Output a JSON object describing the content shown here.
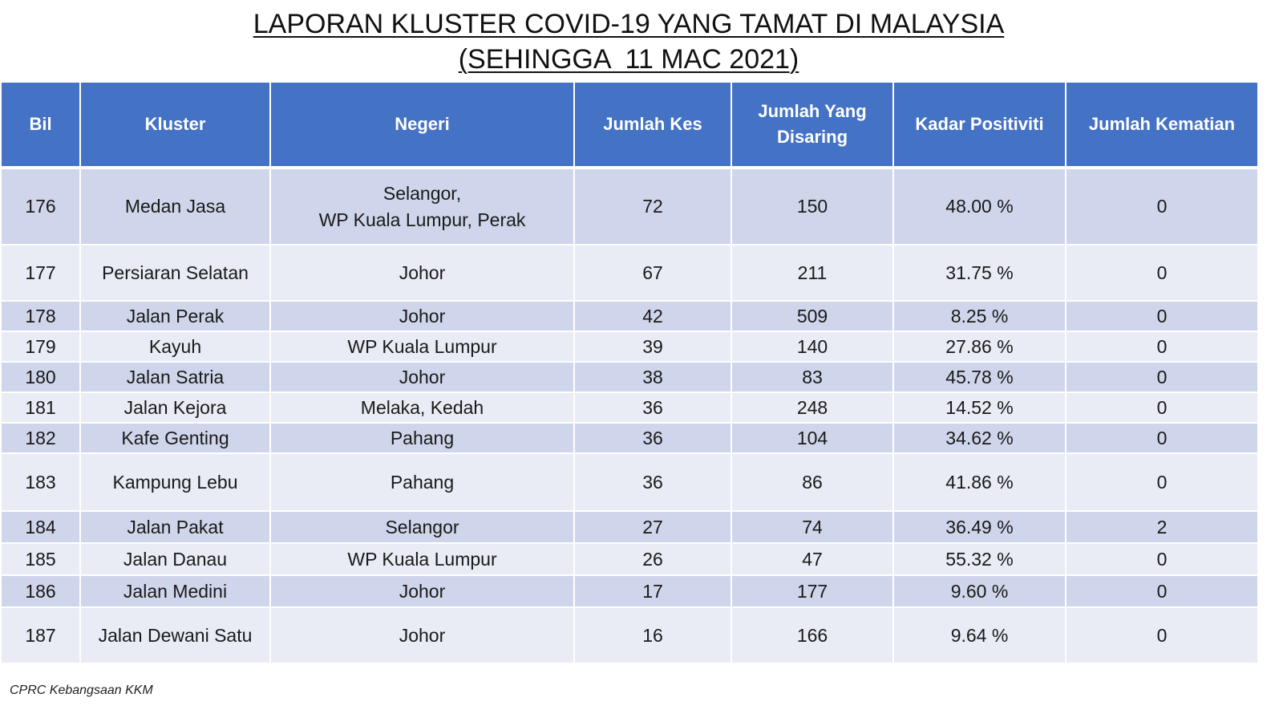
{
  "title": {
    "line1": "LAPORAN KLUSTER COVID-19 YANG TAMAT DI MALAYSIA",
    "line2": "(SEHINGGA  11 MAC 2021)"
  },
  "table": {
    "headers": [
      "Bil",
      "Kluster",
      "Negeri",
      "Jumlah Kes",
      "Jumlah Yang Disaring",
      "Kadar Positiviti",
      "Jumlah Kematian"
    ],
    "rows": [
      {
        "bil": "176",
        "kluster": "Medan Jasa",
        "negeri": "Selangor,\nWP Kuala Lumpur, Perak",
        "kes": "72",
        "disaring": "150",
        "positiviti": "48.00 %",
        "kematian": "0"
      },
      {
        "bil": "177",
        "kluster": "Persiaran Selatan",
        "negeri": "Johor",
        "kes": "67",
        "disaring": "211",
        "positiviti": "31.75 %",
        "kematian": "0"
      },
      {
        "bil": "178",
        "kluster": "Jalan Perak",
        "negeri": "Johor",
        "kes": "42",
        "disaring": "509",
        "positiviti": "8.25 %",
        "kematian": "0"
      },
      {
        "bil": "179",
        "kluster": "Kayuh",
        "negeri": "WP Kuala Lumpur",
        "kes": "39",
        "disaring": "140",
        "positiviti": "27.86 %",
        "kematian": "0"
      },
      {
        "bil": "180",
        "kluster": "Jalan Satria",
        "negeri": "Johor",
        "kes": "38",
        "disaring": "83",
        "positiviti": "45.78 %",
        "kematian": "0"
      },
      {
        "bil": "181",
        "kluster": "Jalan Kejora",
        "negeri": "Melaka, Kedah",
        "kes": "36",
        "disaring": "248",
        "positiviti": "14.52 %",
        "kematian": "0"
      },
      {
        "bil": "182",
        "kluster": "Kafe Genting",
        "negeri": "Pahang",
        "kes": "36",
        "disaring": "104",
        "positiviti": "34.62 %",
        "kematian": "0"
      },
      {
        "bil": "183",
        "kluster": "Kampung Lebu",
        "negeri": "Pahang",
        "kes": "36",
        "disaring": "86",
        "positiviti": "41.86 %",
        "kematian": "0"
      },
      {
        "bil": "184",
        "kluster": "Jalan Pakat",
        "negeri": "Selangor",
        "kes": "27",
        "disaring": "74",
        "positiviti": "36.49 %",
        "kematian": "2"
      },
      {
        "bil": "185",
        "kluster": "Jalan Danau",
        "negeri": "WP Kuala Lumpur",
        "kes": "26",
        "disaring": "47",
        "positiviti": "55.32 %",
        "kematian": "0"
      },
      {
        "bil": "186",
        "kluster": "Jalan Medini",
        "negeri": "Johor",
        "kes": "17",
        "disaring": "177",
        "positiviti": "9.60 %",
        "kematian": "0"
      },
      {
        "bil": "187",
        "kluster": "Jalan Dewani Satu",
        "negeri": "Johor",
        "kes": "16",
        "disaring": "166",
        "positiviti": "9.64 %",
        "kematian": "0"
      }
    ]
  },
  "footer": {
    "source": "CPRC Kebangsaan KKM"
  },
  "colors": {
    "header_bg": "#4472c4",
    "row_dark": "#cfd5ea",
    "row_light": "#e9ebf5"
  }
}
